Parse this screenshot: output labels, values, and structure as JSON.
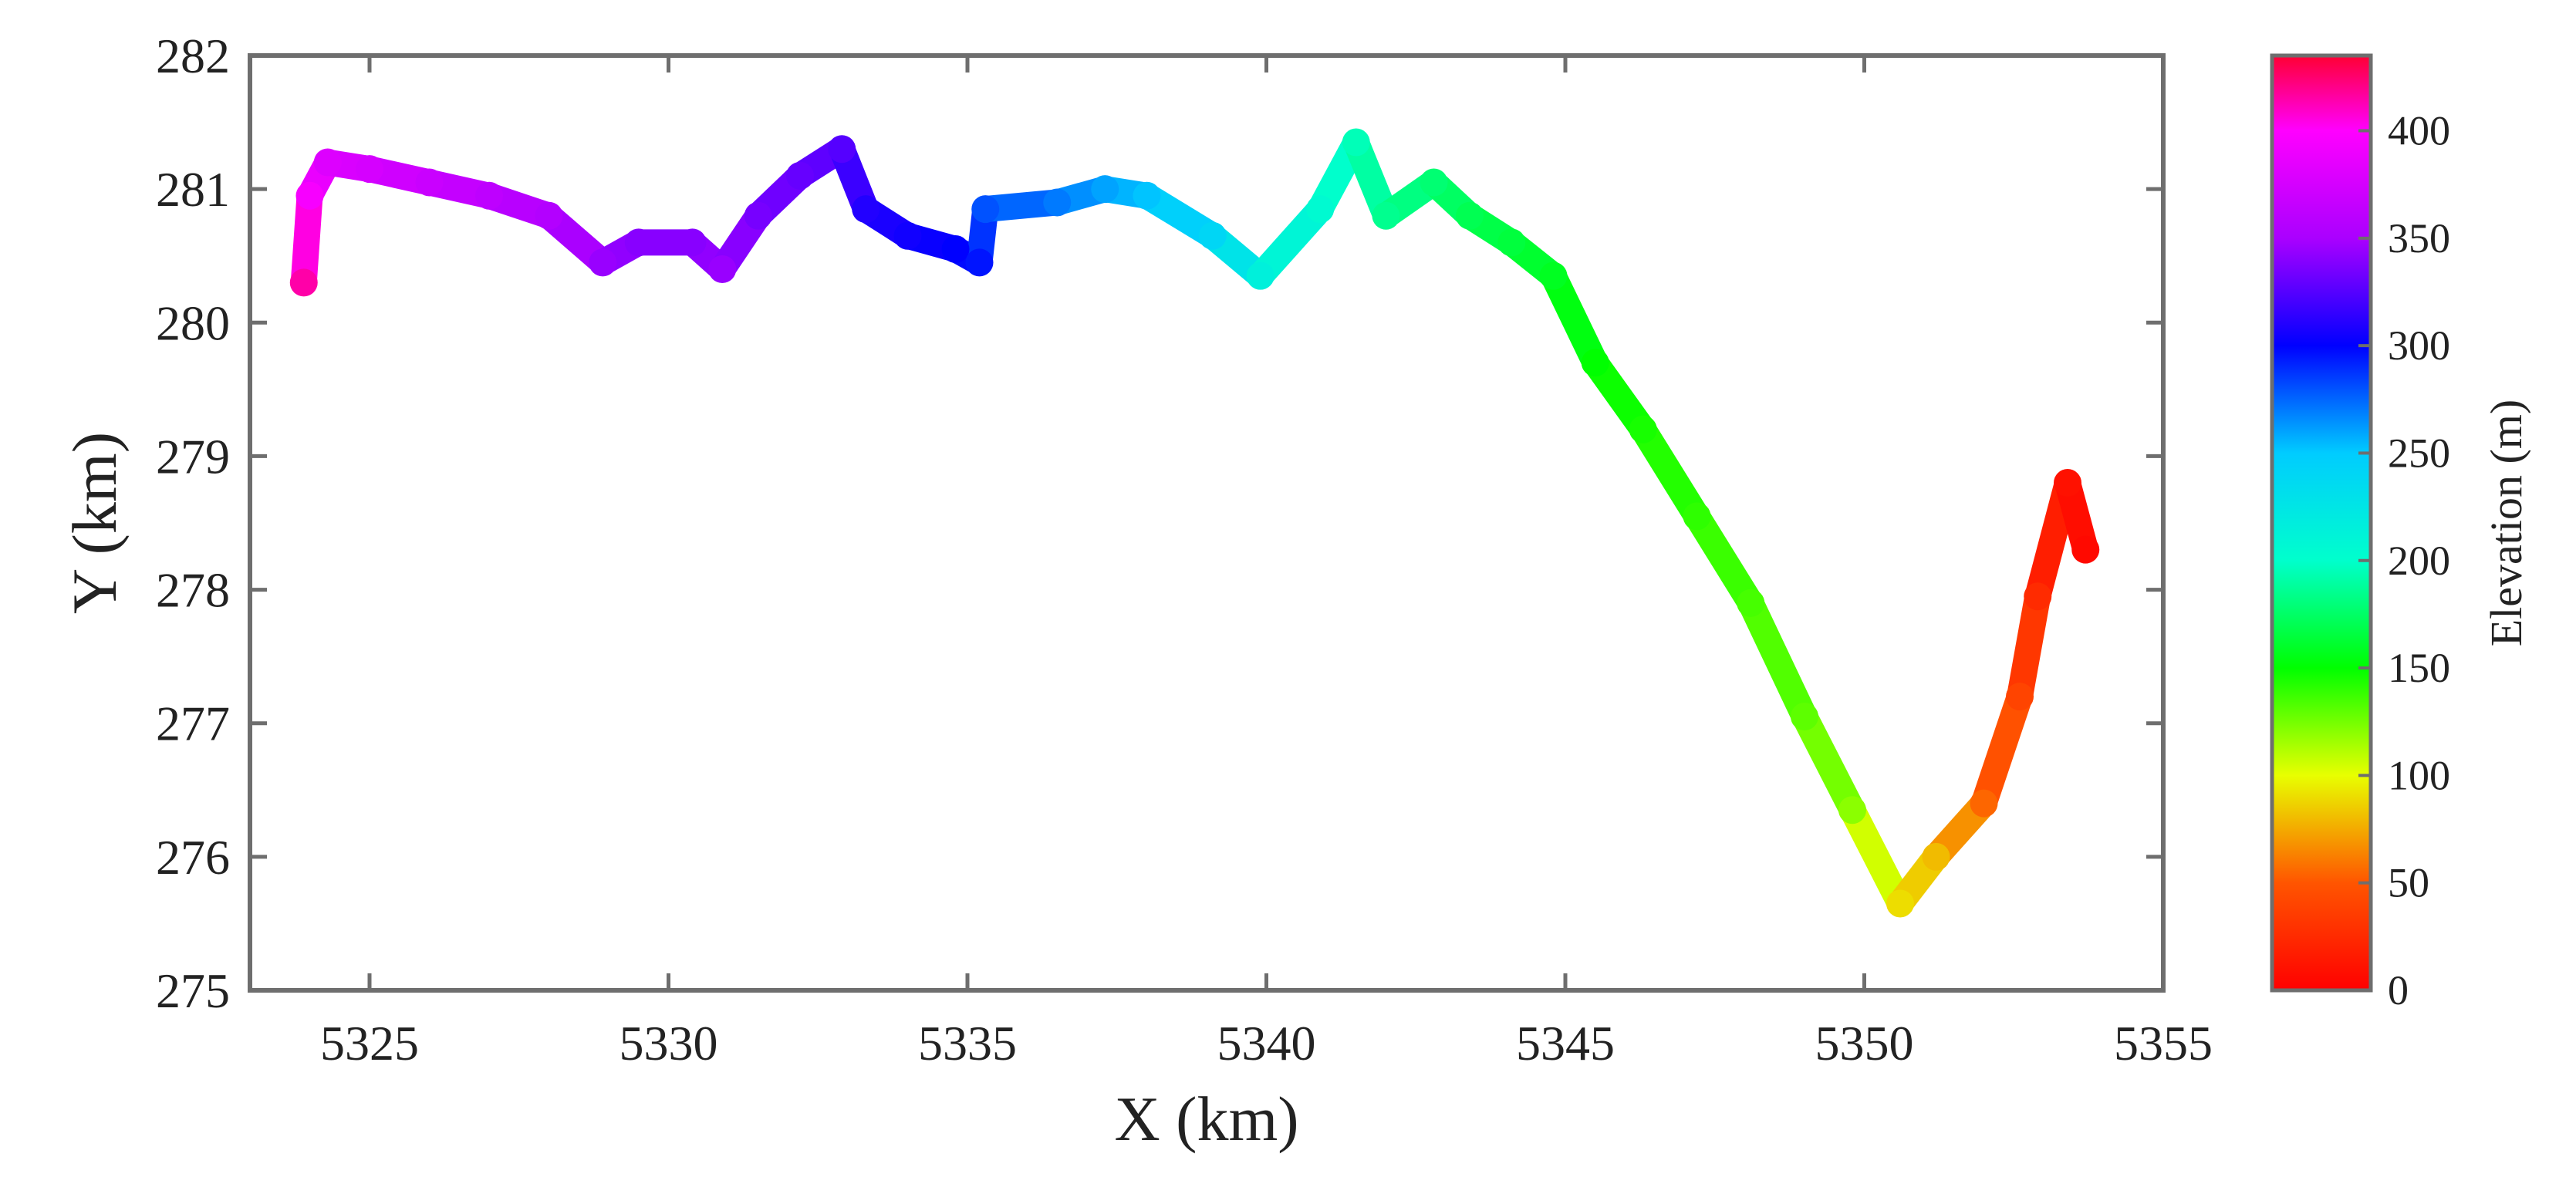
{
  "chart_data": {
    "type": "scatter",
    "title": "",
    "xlabel": "X (km)",
    "ylabel": "Y (km)",
    "xlim": [
      5323,
      5355
    ],
    "ylim": [
      275,
      282
    ],
    "xticks": [
      5325,
      5330,
      5335,
      5340,
      5345,
      5350,
      5355
    ],
    "yticks": [
      275,
      276,
      277,
      278,
      279,
      280,
      281,
      282
    ],
    "grid": false,
    "colorbar": {
      "label": "Elevation (m)",
      "range": [
        0,
        435
      ],
      "ticks": [
        0,
        50,
        100,
        150,
        200,
        250,
        300,
        350,
        400
      ],
      "colormap": "hsv",
      "color_stops": [
        {
          "value": 0,
          "color": "#ff0000"
        },
        {
          "value": 50,
          "color": "#ff5500"
        },
        {
          "value": 100,
          "color": "#e8ff00"
        },
        {
          "value": 150,
          "color": "#00ff00"
        },
        {
          "value": 200,
          "color": "#00ffcc"
        },
        {
          "value": 250,
          "color": "#00ccff"
        },
        {
          "value": 300,
          "color": "#0000ff"
        },
        {
          "value": 350,
          "color": "#aa00ff"
        },
        {
          "value": 400,
          "color": "#ff00ff"
        },
        {
          "value": 435,
          "color": "#ff0033"
        }
      ]
    },
    "series": [
      {
        "x": [
          5323.9,
          5324.0,
          5324.3,
          5325.0,
          5326.0,
          5327.0,
          5328.0,
          5328.9,
          5329.5,
          5330.4,
          5330.9,
          5331.5,
          5332.2,
          5332.9,
          5333.3,
          5334.0,
          5334.8,
          5335.2,
          5335.3,
          5336.5,
          5337.3,
          5338.0,
          5339.1,
          5339.9,
          5340.9,
          5341.5,
          5342.0,
          5342.8,
          5343.4,
          5344.1,
          5344.8,
          5345.5,
          5346.3,
          5347.2,
          5348.1,
          5349.0,
          5349.8,
          5350.6,
          5351.2,
          5352.0,
          5352.6,
          5352.9,
          5353.4,
          5353.7
        ],
        "y": [
          280.3,
          280.95,
          281.2,
          281.15,
          281.05,
          280.95,
          280.8,
          280.45,
          280.6,
          280.6,
          280.4,
          280.8,
          281.1,
          281.3,
          280.85,
          280.65,
          280.55,
          280.45,
          280.85,
          280.9,
          281.0,
          280.95,
          280.65,
          280.35,
          280.85,
          281.35,
          280.8,
          281.05,
          280.8,
          280.6,
          280.35,
          279.7,
          279.2,
          278.55,
          277.9,
          277.05,
          276.35,
          275.65,
          276.0,
          276.4,
          277.2,
          277.95,
          278.8,
          278.3
        ],
        "elevation": [
          415,
          395,
          380,
          375,
          368,
          362,
          355,
          345,
          340,
          340,
          345,
          335,
          330,
          325,
          310,
          305,
          300,
          295,
          280,
          270,
          260,
          252,
          240,
          215,
          205,
          195,
          185,
          178,
          170,
          165,
          158,
          150,
          145,
          140,
          135,
          130,
          120,
          90,
          80,
          55,
          40,
          25,
          10,
          5
        ]
      }
    ]
  }
}
